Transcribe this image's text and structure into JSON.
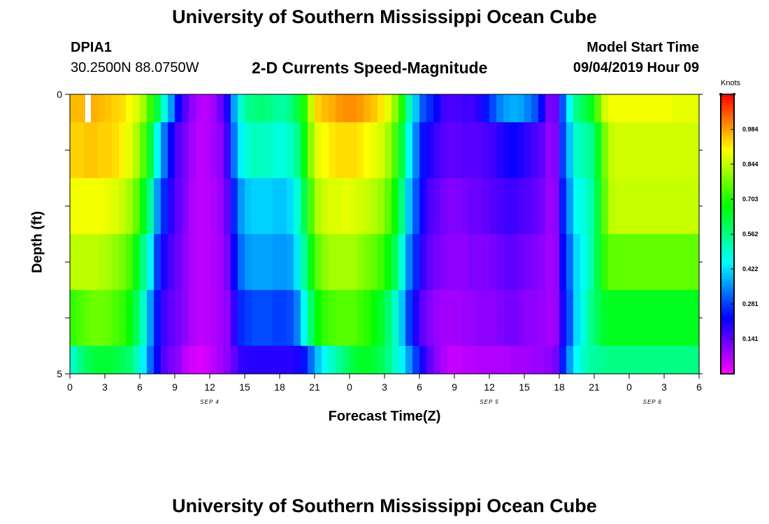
{
  "page": {
    "title_top": "University of Southern Mississippi Ocean Cube",
    "title_bottom": "University of Southern Mississippi Ocean Cube",
    "station": "DPIA1",
    "location": "30.2500N 88.0750W",
    "plot_title": "2-D Currents Speed-Magnitude",
    "model_label": "Model Start Time",
    "model_time": "09/04/2019 Hour 09"
  },
  "chart_data": {
    "type": "heatmap",
    "title": "2-D Currents Speed-Magnitude",
    "xlabel": "Forecast Time(Z)",
    "ylabel": "Depth (ft)",
    "x_tick_labels": [
      "0",
      "3",
      "6",
      "9",
      "12",
      "15",
      "18",
      "21",
      "0",
      "3",
      "6",
      "9",
      "12",
      "15",
      "18",
      "21",
      "0",
      "3",
      "6"
    ],
    "x_day_labels": [
      "SEP 4",
      "SEP 5",
      "SEP 6"
    ],
    "x_range_hours": [
      0,
      54
    ],
    "y_tick_labels": [
      "0",
      "5"
    ],
    "y_range_ft": [
      0,
      5
    ],
    "colorbar": {
      "unit": "Knots",
      "tick_labels": [
        "0.984",
        "0.844",
        "0.703",
        "0.562",
        "0.422",
        "0.281",
        "0.141"
      ],
      "range": [
        0.0,
        1.125
      ]
    },
    "depth_layers_ft": [
      0.25,
      1.0,
      2.0,
      3.0,
      4.0,
      4.75
    ],
    "layer_bounds_ft": [
      0,
      0.5,
      1.5,
      2.5,
      3.5,
      4.5,
      5.0
    ],
    "speed_knots": [
      [
        0.96,
        0.96,
        0.97,
        0.97,
        0.96,
        0.95,
        0.94,
        0.93,
        0.9,
        0.87,
        0.82,
        0.72,
        0.62,
        0.48,
        0.36,
        0.22,
        0.15,
        0.1,
        0.07,
        0.06,
        0.08,
        0.13,
        0.2,
        0.37,
        0.49,
        0.55,
        0.56,
        0.57,
        0.56,
        0.54,
        0.53,
        0.56,
        0.62,
        0.7,
        0.85,
        0.94,
        0.96,
        0.97,
        0.99,
        1.0,
        1.0,
        0.99,
        0.97,
        0.95,
        0.92,
        0.88,
        0.8,
        0.7,
        0.52,
        0.4,
        0.3,
        0.26,
        0.22,
        0.17,
        0.16,
        0.16,
        0.17,
        0.17,
        0.19,
        0.24,
        0.29,
        0.34,
        0.37,
        0.38,
        0.37,
        0.34,
        0.3,
        0.22,
        0.12,
        0.13,
        0.3,
        0.45,
        0.56,
        0.6,
        0.65,
        0.75,
        0.86,
        0.89,
        0.89,
        0.89,
        0.89,
        0.89,
        0.89,
        0.89,
        0.89,
        0.89,
        0.88,
        0.88,
        0.88,
        0.88
      ],
      [
        0.94,
        0.94,
        0.95,
        0.95,
        0.94,
        0.94,
        0.93,
        0.91,
        0.88,
        0.83,
        0.75,
        0.63,
        0.45,
        0.33,
        0.22,
        0.15,
        0.12,
        0.08,
        0.06,
        0.06,
        0.08,
        0.1,
        0.17,
        0.33,
        0.44,
        0.49,
        0.51,
        0.5,
        0.5,
        0.48,
        0.48,
        0.5,
        0.55,
        0.66,
        0.8,
        0.88,
        0.9,
        0.92,
        0.93,
        0.93,
        0.93,
        0.92,
        0.9,
        0.88,
        0.86,
        0.82,
        0.74,
        0.62,
        0.46,
        0.34,
        0.24,
        0.2,
        0.17,
        0.15,
        0.14,
        0.14,
        0.15,
        0.15,
        0.15,
        0.16,
        0.17,
        0.19,
        0.21,
        0.22,
        0.2,
        0.18,
        0.16,
        0.14,
        0.1,
        0.11,
        0.28,
        0.4,
        0.5,
        0.52,
        0.55,
        0.64,
        0.78,
        0.85,
        0.86,
        0.86,
        0.86,
        0.86,
        0.86,
        0.86,
        0.86,
        0.86,
        0.86,
        0.86,
        0.86,
        0.86
      ],
      [
        0.89,
        0.89,
        0.89,
        0.89,
        0.89,
        0.88,
        0.87,
        0.85,
        0.82,
        0.76,
        0.66,
        0.54,
        0.36,
        0.26,
        0.19,
        0.14,
        0.11,
        0.07,
        0.06,
        0.06,
        0.07,
        0.09,
        0.14,
        0.26,
        0.36,
        0.4,
        0.41,
        0.41,
        0.41,
        0.4,
        0.4,
        0.42,
        0.48,
        0.6,
        0.74,
        0.83,
        0.86,
        0.87,
        0.87,
        0.88,
        0.87,
        0.86,
        0.85,
        0.83,
        0.81,
        0.76,
        0.68,
        0.56,
        0.4,
        0.3,
        0.21,
        0.16,
        0.14,
        0.12,
        0.11,
        0.11,
        0.12,
        0.13,
        0.13,
        0.14,
        0.15,
        0.16,
        0.17,
        0.17,
        0.16,
        0.15,
        0.14,
        0.12,
        0.09,
        0.1,
        0.25,
        0.36,
        0.46,
        0.48,
        0.52,
        0.62,
        0.76,
        0.84,
        0.85,
        0.85,
        0.85,
        0.85,
        0.85,
        0.85,
        0.85,
        0.85,
        0.85,
        0.85,
        0.85,
        0.85
      ],
      [
        0.84,
        0.84,
        0.84,
        0.84,
        0.83,
        0.82,
        0.8,
        0.78,
        0.74,
        0.66,
        0.56,
        0.44,
        0.28,
        0.2,
        0.16,
        0.13,
        0.1,
        0.07,
        0.06,
        0.06,
        0.07,
        0.08,
        0.12,
        0.22,
        0.32,
        0.36,
        0.37,
        0.37,
        0.37,
        0.36,
        0.36,
        0.37,
        0.43,
        0.54,
        0.66,
        0.76,
        0.8,
        0.82,
        0.82,
        0.82,
        0.82,
        0.8,
        0.78,
        0.76,
        0.73,
        0.68,
        0.6,
        0.48,
        0.34,
        0.26,
        0.18,
        0.14,
        0.12,
        0.11,
        0.1,
        0.1,
        0.1,
        0.11,
        0.11,
        0.11,
        0.12,
        0.13,
        0.14,
        0.14,
        0.13,
        0.12,
        0.11,
        0.1,
        0.08,
        0.09,
        0.22,
        0.32,
        0.42,
        0.46,
        0.52,
        0.62,
        0.72,
        0.76,
        0.76,
        0.76,
        0.76,
        0.76,
        0.76,
        0.76,
        0.76,
        0.76,
        0.76,
        0.76,
        0.76,
        0.76
      ],
      [
        0.72,
        0.74,
        0.76,
        0.77,
        0.77,
        0.76,
        0.74,
        0.72,
        0.68,
        0.6,
        0.5,
        0.36,
        0.24,
        0.17,
        0.14,
        0.12,
        0.1,
        0.07,
        0.06,
        0.06,
        0.07,
        0.08,
        0.1,
        0.18,
        0.26,
        0.28,
        0.29,
        0.29,
        0.29,
        0.28,
        0.28,
        0.29,
        0.34,
        0.46,
        0.58,
        0.68,
        0.72,
        0.74,
        0.75,
        0.75,
        0.75,
        0.73,
        0.71,
        0.68,
        0.64,
        0.58,
        0.5,
        0.4,
        0.28,
        0.2,
        0.14,
        0.11,
        0.09,
        0.08,
        0.08,
        0.08,
        0.09,
        0.09,
        0.1,
        0.1,
        0.1,
        0.11,
        0.12,
        0.12,
        0.11,
        0.1,
        0.1,
        0.09,
        0.08,
        0.09,
        0.2,
        0.3,
        0.42,
        0.48,
        0.55,
        0.6,
        0.64,
        0.65,
        0.65,
        0.65,
        0.65,
        0.65,
        0.65,
        0.65,
        0.65,
        0.65,
        0.65,
        0.65,
        0.65,
        0.65
      ],
      [
        0.5,
        0.56,
        0.6,
        0.62,
        0.63,
        0.63,
        0.62,
        0.6,
        0.58,
        0.52,
        0.44,
        0.32,
        0.22,
        0.15,
        0.12,
        0.1,
        0.06,
        0.04,
        0.03,
        0.04,
        0.06,
        0.08,
        0.1,
        0.14,
        0.18,
        0.19,
        0.19,
        0.19,
        0.19,
        0.19,
        0.19,
        0.19,
        0.2,
        0.24,
        0.32,
        0.4,
        0.46,
        0.5,
        0.54,
        0.58,
        0.62,
        0.64,
        0.64,
        0.63,
        0.6,
        0.56,
        0.5,
        0.44,
        0.36,
        0.28,
        0.2,
        0.14,
        0.1,
        0.07,
        0.05,
        0.05,
        0.06,
        0.06,
        0.07,
        0.07,
        0.07,
        0.07,
        0.07,
        0.08,
        0.08,
        0.08,
        0.09,
        0.09,
        0.1,
        0.12,
        0.25,
        0.36,
        0.45,
        0.5,
        0.53,
        0.54,
        0.55,
        0.56,
        0.56,
        0.56,
        0.56,
        0.56,
        0.56,
        0.56,
        0.56,
        0.56,
        0.56,
        0.56,
        0.56,
        0.56
      ]
    ],
    "speed_time_range_hours": [
      0,
      54
    ],
    "missing": [
      {
        "hour_from": 1.3,
        "hour_to": 1.8,
        "depth_from_ft": 0,
        "depth_to_ft": 0.5
      }
    ]
  }
}
